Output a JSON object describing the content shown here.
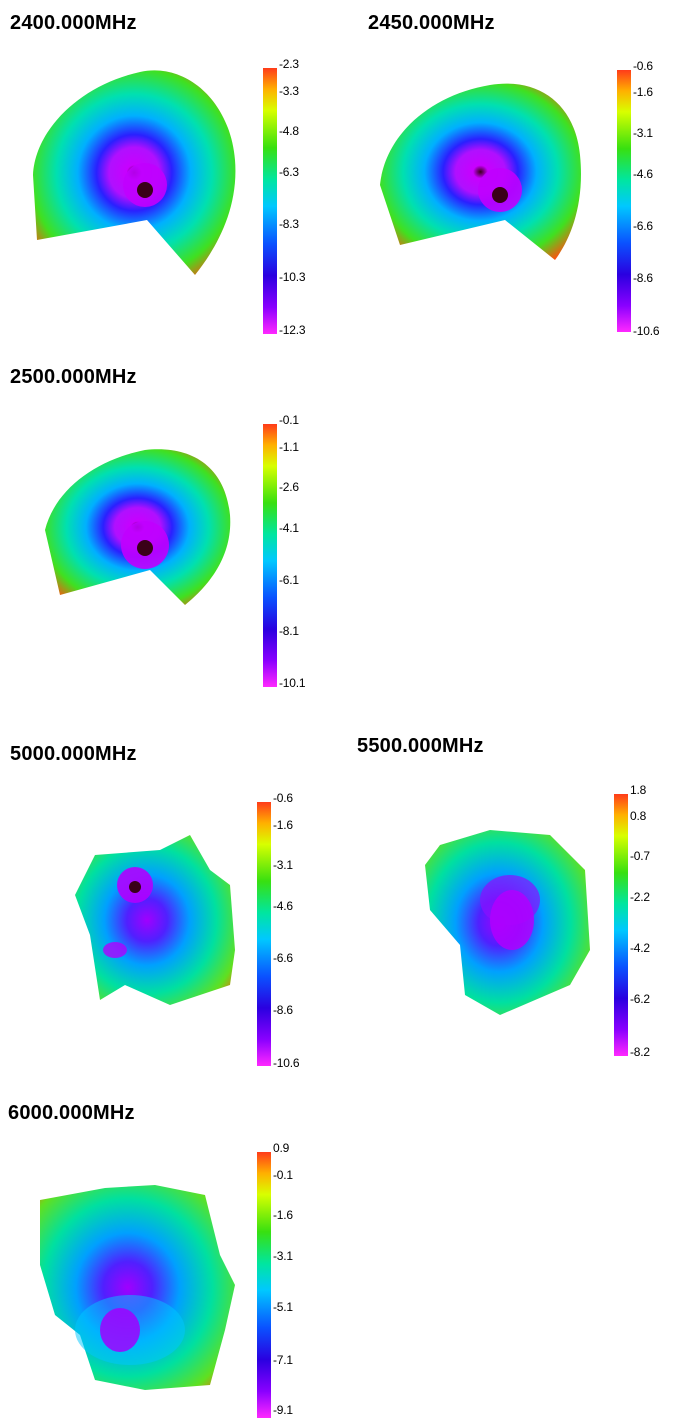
{
  "panels": [
    {
      "title": "2400.000MHz",
      "ticks": [
        "-2.3",
        "-3.3",
        "-4.8",
        "-6.3",
        "-8.3",
        "-10.3",
        "-12.3"
      ]
    },
    {
      "title": "2450.000MHz",
      "ticks": [
        "-0.6",
        "-1.6",
        "-3.1",
        "-4.6",
        "-6.6",
        "-8.6",
        "-10.6"
      ]
    },
    {
      "title": "2500.000MHz",
      "ticks": [
        "-0.1",
        "-1.1",
        "-2.6",
        "-4.1",
        "-6.1",
        "-8.1",
        "-10.1"
      ]
    },
    {
      "title": "5000.000MHz",
      "ticks": [
        "-0.6",
        "-1.6",
        "-3.1",
        "-4.6",
        "-6.6",
        "-8.6",
        "-10.6"
      ]
    },
    {
      "title": "5500.000MHz",
      "ticks": [
        "1.8",
        "0.8",
        "-0.7",
        "-2.2",
        "-4.2",
        "-6.2",
        "-8.2"
      ]
    },
    {
      "title": "6000.000MHz",
      "ticks": [
        "0.9",
        "-0.1",
        "-1.6",
        "-3.1",
        "-5.1",
        "-7.1",
        "-9.1"
      ]
    }
  ]
}
